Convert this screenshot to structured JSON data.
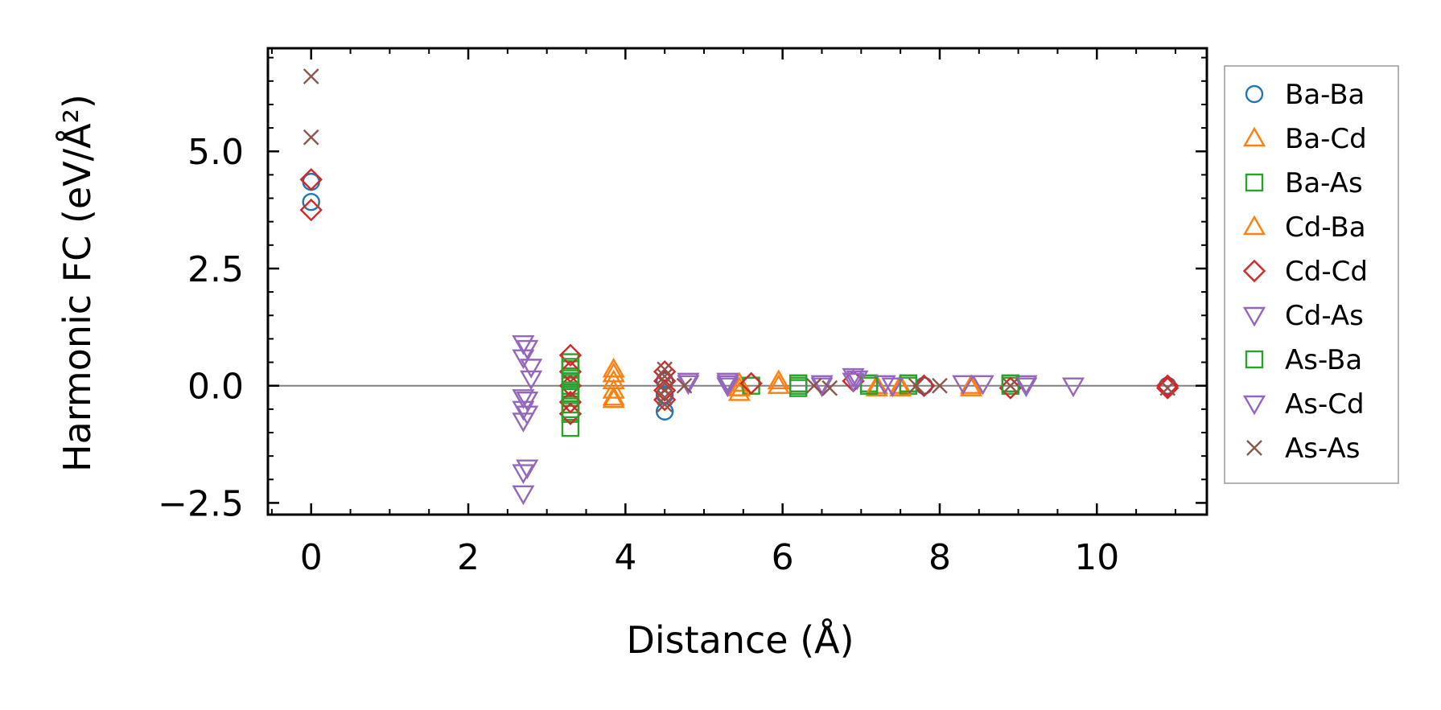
{
  "chart_data": {
    "type": "scatter",
    "xlabel": "Distance (Å)",
    "ylabel": "Harmonic FC (eV/Å²)",
    "xlim": [
      -0.55,
      11.4
    ],
    "ylim": [
      -2.75,
      7.2
    ],
    "x_ticks": [
      0,
      2,
      4,
      6,
      8,
      10
    ],
    "x_tick_labels": [
      "0",
      "2",
      "4",
      "6",
      "8",
      "10"
    ],
    "y_ticks": [
      -2.5,
      0.0,
      2.5,
      5.0
    ],
    "y_tick_labels": [
      "−2.5",
      "0.0",
      "2.5",
      "5.0"
    ],
    "zero_line": true,
    "grid": false,
    "legend_position": "outside-right",
    "series": [
      {
        "name": "Ba-Ba",
        "marker": "circle",
        "color": "#1f77b4",
        "filled": false,
        "points": [
          [
            0,
            4.35
          ],
          [
            0,
            3.92
          ],
          [
            4.5,
            -0.55
          ],
          [
            4.5,
            0.1
          ],
          [
            4.5,
            -0.2
          ],
          [
            7.8,
            0.0
          ],
          [
            10.9,
            0.0
          ]
        ]
      },
      {
        "name": "Ba-Cd",
        "marker": "triangle-up",
        "color": "#ff7f0e",
        "filled": false,
        "points": [
          [
            3.85,
            0.25
          ],
          [
            3.85,
            -0.1
          ],
          [
            3.85,
            -0.25
          ],
          [
            5.45,
            0.05
          ],
          [
            5.45,
            -0.15
          ],
          [
            5.95,
            0.0
          ],
          [
            7.2,
            -0.05
          ],
          [
            7.5,
            0.0
          ],
          [
            8.4,
            -0.05
          ]
        ]
      },
      {
        "name": "Ba-As",
        "marker": "square",
        "color": "#2ca02c",
        "filled": false,
        "points": [
          [
            3.3,
            0.5
          ],
          [
            3.3,
            0.35
          ],
          [
            3.3,
            0.2
          ],
          [
            3.3,
            0.0
          ],
          [
            3.3,
            -0.2
          ],
          [
            3.3,
            -0.4
          ],
          [
            3.3,
            -0.6
          ],
          [
            3.3,
            -0.9
          ],
          [
            5.6,
            0.0
          ],
          [
            6.2,
            0.0
          ],
          [
            7.1,
            0.05
          ],
          [
            7.6,
            0.0
          ],
          [
            8.9,
            0.0
          ]
        ]
      },
      {
        "name": "Cd-Ba",
        "marker": "triangle-up",
        "color": "#ff7f0e",
        "filled": false,
        "points": [
          [
            3.85,
            0.35
          ],
          [
            3.85,
            0.1
          ],
          [
            3.85,
            -0.3
          ],
          [
            5.45,
            -0.05
          ],
          [
            5.95,
            0.1
          ],
          [
            7.2,
            0.0
          ],
          [
            7.5,
            -0.05
          ],
          [
            8.4,
            0.0
          ]
        ]
      },
      {
        "name": "Cd-Cd",
        "marker": "diamond",
        "color": "#d62728",
        "filled": false,
        "points": [
          [
            0,
            4.4
          ],
          [
            0,
            3.75
          ],
          [
            3.3,
            0.65
          ],
          [
            3.3,
            0.3
          ],
          [
            3.3,
            0.0
          ],
          [
            3.3,
            -0.35
          ],
          [
            3.3,
            -0.6
          ],
          [
            4.5,
            0.3
          ],
          [
            4.5,
            0.1
          ],
          [
            4.5,
            -0.1
          ],
          [
            4.5,
            -0.3
          ],
          [
            5.6,
            0.05
          ],
          [
            6.9,
            0.1
          ],
          [
            7.8,
            0.0
          ],
          [
            8.9,
            -0.05
          ],
          [
            10.9,
            0.0
          ],
          [
            10.9,
            -0.05
          ]
        ]
      },
      {
        "name": "Cd-As",
        "marker": "triangle-down",
        "color": "#9467bd",
        "filled": false,
        "points": [
          [
            2.7,
            0.9
          ],
          [
            2.7,
            0.6
          ],
          [
            2.8,
            0.4
          ],
          [
            2.8,
            0.15
          ],
          [
            2.7,
            -0.25
          ],
          [
            2.7,
            -0.5
          ],
          [
            2.7,
            -0.75
          ],
          [
            2.7,
            -1.85
          ],
          [
            2.7,
            -2.3
          ],
          [
            4.8,
            0.1
          ],
          [
            5.3,
            0.1
          ],
          [
            5.3,
            0.0
          ],
          [
            6.5,
            0.0
          ],
          [
            6.9,
            0.2
          ],
          [
            6.9,
            0.1
          ],
          [
            7.3,
            0.05
          ],
          [
            8.3,
            0.05
          ],
          [
            9.1,
            0.05
          ],
          [
            9.7,
            0.0
          ]
        ]
      },
      {
        "name": "As-Ba",
        "marker": "square",
        "color": "#2ca02c",
        "filled": false,
        "points": [
          [
            3.3,
            0.4
          ],
          [
            3.3,
            0.1
          ],
          [
            3.3,
            -0.1
          ],
          [
            3.3,
            -0.5
          ],
          [
            6.2,
            0.05
          ],
          [
            6.2,
            -0.05
          ],
          [
            7.1,
            0.0
          ],
          [
            7.6,
            0.05
          ],
          [
            8.9,
            0.05
          ]
        ]
      },
      {
        "name": "As-Cd",
        "marker": "triangle-down",
        "color": "#9467bd",
        "filled": false,
        "points": [
          [
            2.75,
            0.8
          ],
          [
            2.75,
            -0.3
          ],
          [
            2.75,
            -0.6
          ],
          [
            2.75,
            -1.75
          ],
          [
            4.8,
            0.05
          ],
          [
            5.3,
            0.05
          ],
          [
            6.5,
            0.05
          ],
          [
            6.95,
            0.15
          ],
          [
            7.4,
            0.0
          ],
          [
            8.55,
            0.05
          ],
          [
            9.1,
            0.0
          ]
        ]
      },
      {
        "name": "As-As",
        "marker": "x",
        "color": "#8c564b",
        "filled": false,
        "points": [
          [
            0,
            6.6
          ],
          [
            0,
            5.3
          ],
          [
            4.5,
            0.35
          ],
          [
            4.5,
            0.2
          ],
          [
            4.5,
            0.05
          ],
          [
            4.5,
            -0.1
          ],
          [
            4.5,
            -0.25
          ],
          [
            4.5,
            -0.4
          ],
          [
            4.75,
            0.0
          ],
          [
            6.4,
            0.0
          ],
          [
            6.6,
            -0.05
          ],
          [
            7.7,
            0.0
          ],
          [
            8.0,
            0.0
          ],
          [
            8.9,
            0.0
          ],
          [
            10.9,
            -0.05
          ]
        ]
      }
    ]
  }
}
